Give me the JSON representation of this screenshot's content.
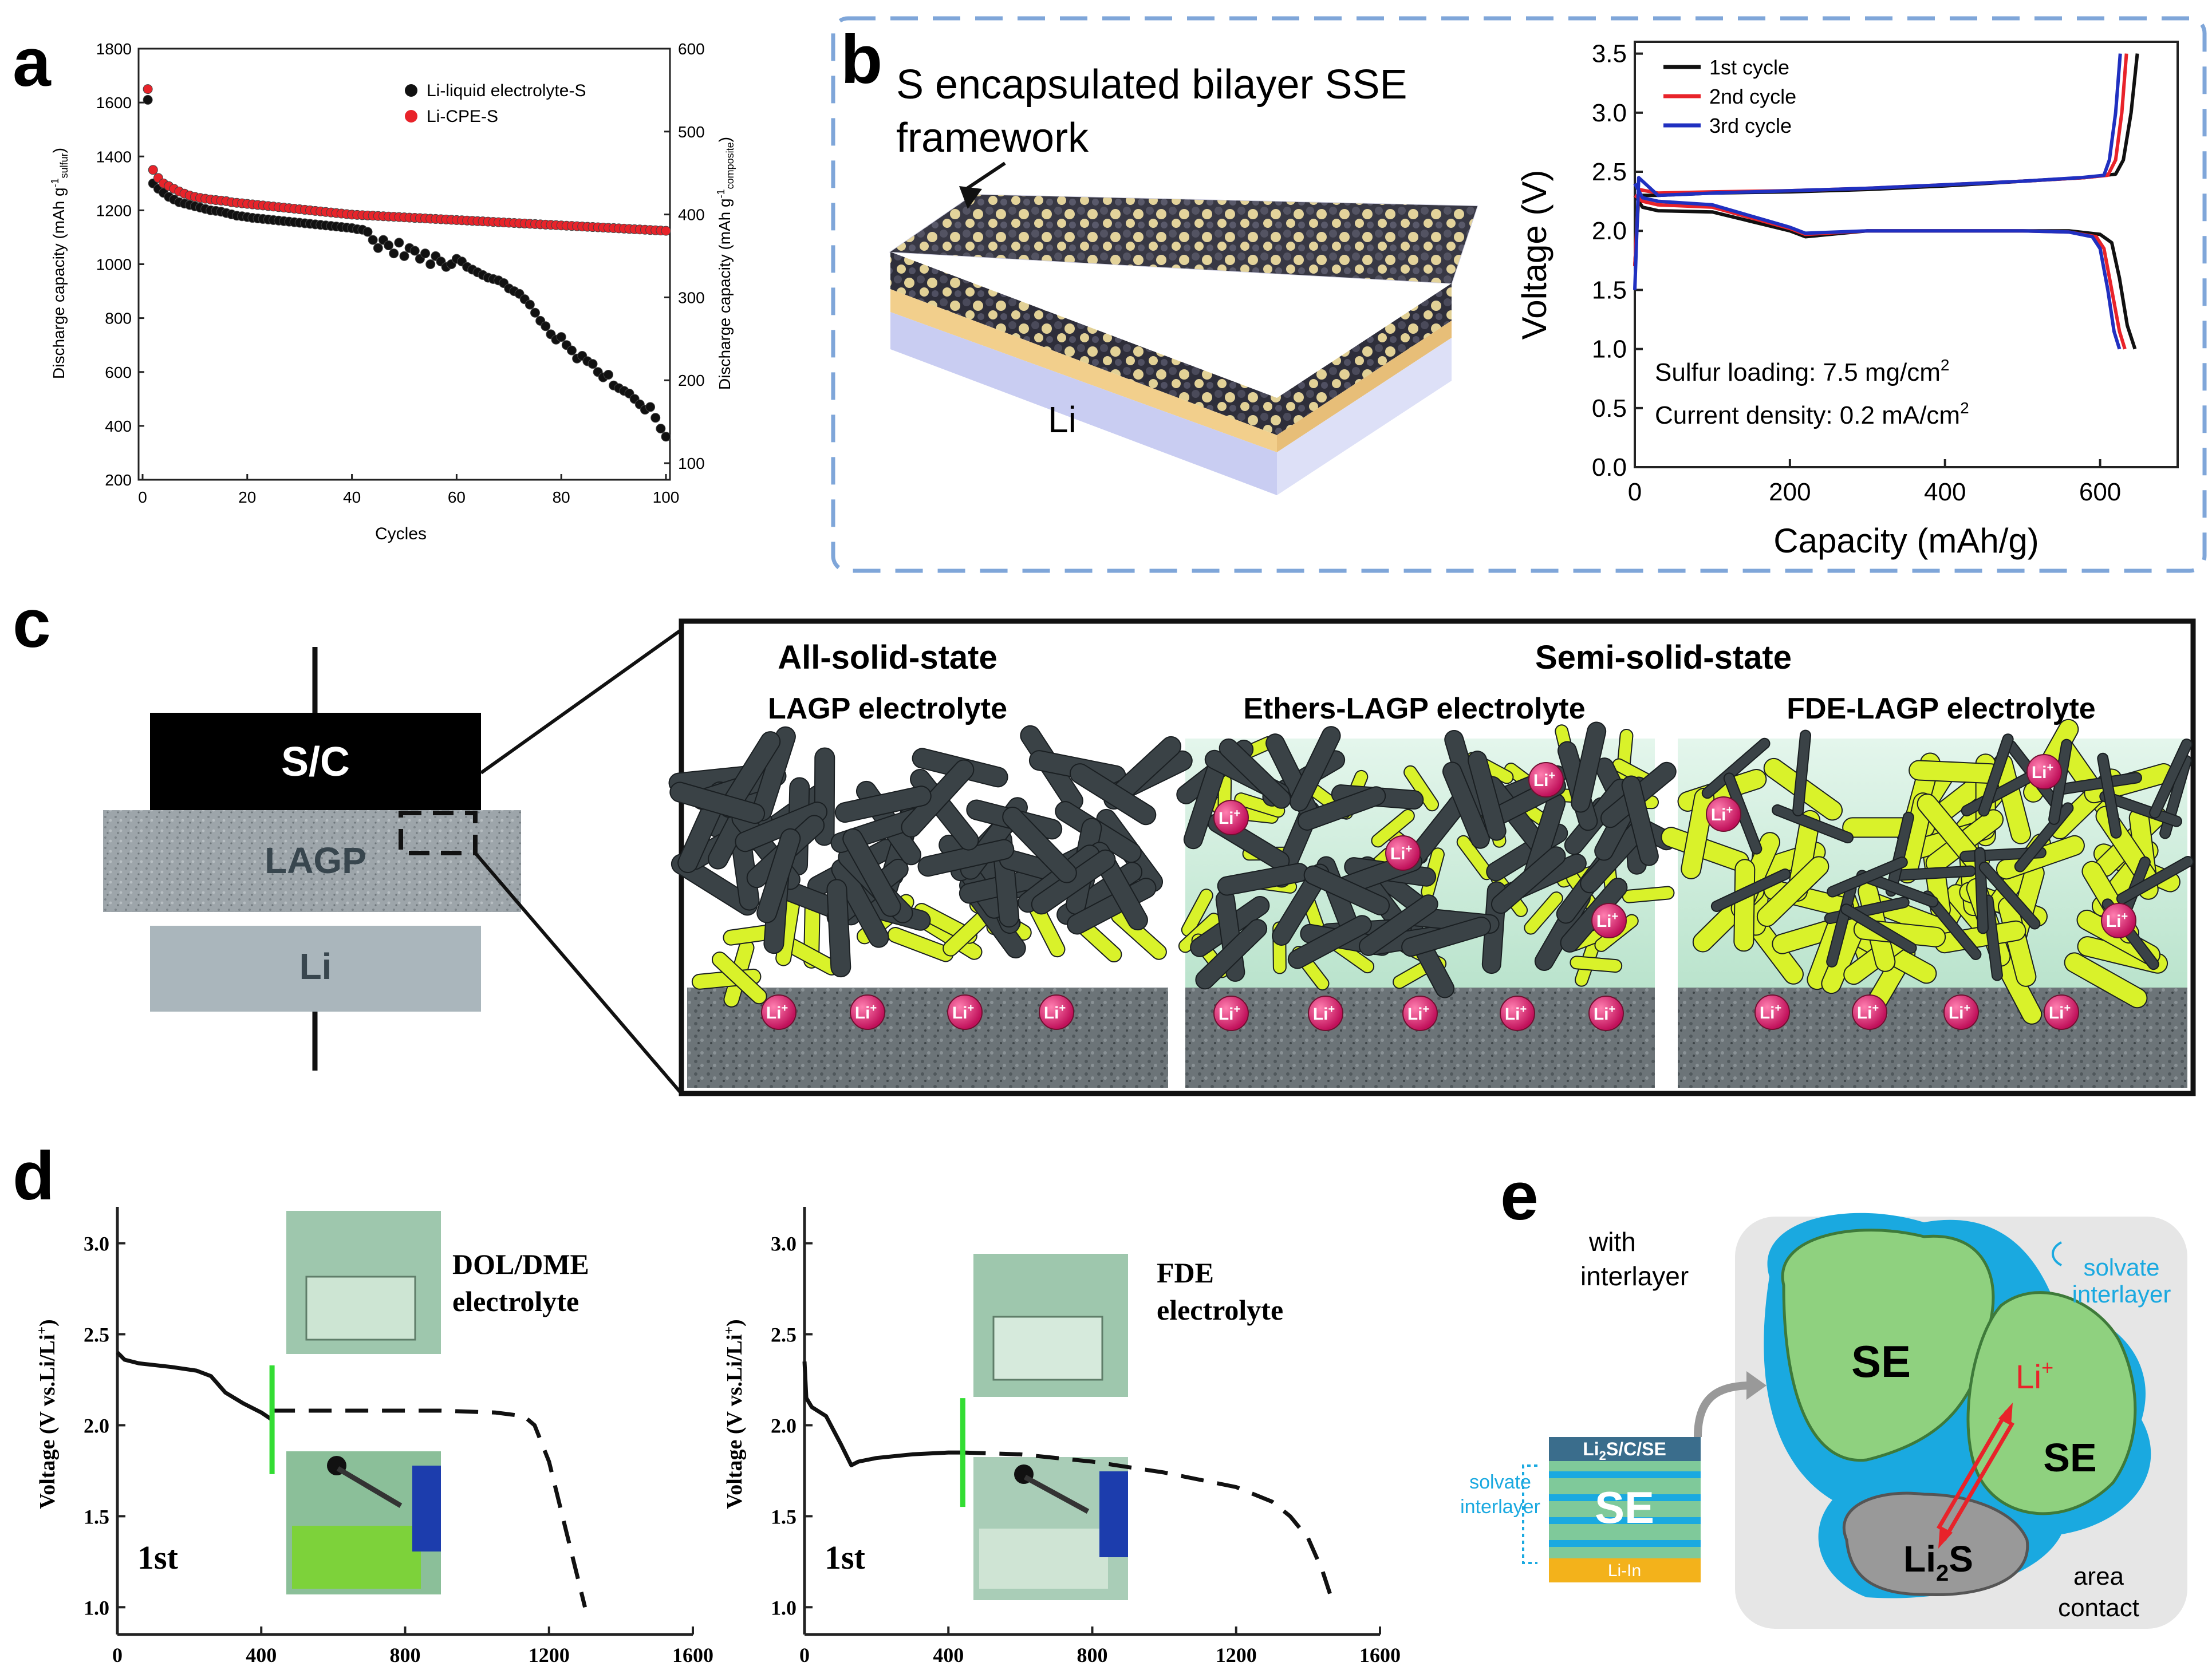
{
  "colors": {
    "black": "#111111",
    "red": "#e8232a",
    "blue": "#2030c0",
    "green": "#33dd33",
    "panel_border": "#7fa6d9",
    "cyan": "#1aa9e0",
    "se_green": "#8fd17f",
    "gray_box": "#e6e6e6",
    "lagp": "#9aa2a8",
    "li_box": "#aab6bc"
  },
  "panel_labels": {
    "a": "a",
    "b": "b",
    "c": "c",
    "d": "d",
    "e": "e"
  },
  "chart_data": [
    {
      "id": "a",
      "type": "scatter",
      "title": "",
      "xlabel": "Cycles",
      "ylabel_left": "Discharge capacity (mAh g-1 sulfur)",
      "ylabel_left_main": "Discharge capacity (mAh g",
      "ylabel_left_sup": "-1",
      "ylabel_left_sub": "sulfur",
      "ylabel_right": "Discharge capacity (mAh g-1 composite)",
      "ylabel_right_main": "Discharge capacity (mAh g",
      "ylabel_right_sup": "-1",
      "ylabel_right_sub": "composite",
      "xlim": [
        0,
        100
      ],
      "ylim_left": [
        200,
        1800
      ],
      "ylim_right": [
        80,
        600
      ],
      "xticks": [
        0,
        20,
        40,
        60,
        80,
        100
      ],
      "yticks_left": [
        200,
        400,
        600,
        800,
        1000,
        1200,
        1400,
        1600,
        1800
      ],
      "yticks_right": [
        100,
        200,
        300,
        400,
        500,
        600
      ],
      "legend": [
        "Li-liquid electrolyte-S",
        "Li-CPE-S"
      ],
      "series": [
        {
          "name": "Li-liquid electrolyte-S",
          "color": "#111111",
          "x": [
            1,
            2,
            3,
            4,
            5,
            6,
            7,
            8,
            9,
            10,
            11,
            12,
            13,
            14,
            15,
            16,
            17,
            18,
            19,
            20,
            21,
            22,
            23,
            24,
            25,
            26,
            27,
            28,
            29,
            30,
            31,
            32,
            33,
            34,
            35,
            36,
            37,
            38,
            39,
            40,
            41,
            42,
            43,
            44,
            45,
            46,
            47,
            48,
            49,
            50,
            51,
            52,
            53,
            54,
            55,
            56,
            57,
            58,
            59,
            60,
            61,
            62,
            63,
            64,
            65,
            66,
            67,
            68,
            69,
            70,
            71,
            72,
            73,
            74,
            75,
            76,
            77,
            78,
            79,
            80,
            81,
            82,
            83,
            84,
            85,
            86,
            87,
            88,
            89,
            90,
            91,
            92,
            93,
            94,
            95,
            96,
            97,
            98,
            99,
            100
          ],
          "y": [
            1610,
            1300,
            1280,
            1265,
            1250,
            1240,
            1230,
            1225,
            1220,
            1215,
            1210,
            1205,
            1200,
            1198,
            1195,
            1190,
            1185,
            1180,
            1178,
            1175,
            1172,
            1170,
            1168,
            1166,
            1164,
            1162,
            1160,
            1158,
            1156,
            1154,
            1152,
            1150,
            1148,
            1146,
            1144,
            1142,
            1140,
            1138,
            1136,
            1134,
            1130,
            1128,
            1120,
            1090,
            1060,
            1090,
            1070,
            1040,
            1080,
            1030,
            1060,
            1050,
            1020,
            1040,
            1000,
            1030,
            1010,
            990,
            1000,
            1020,
            1010,
            990,
            980,
            970,
            960,
            950,
            945,
            940,
            930,
            910,
            900,
            890,
            870,
            850,
            820,
            790,
            770,
            740,
            720,
            730,
            700,
            680,
            650,
            660,
            640,
            630,
            600,
            580,
            590,
            550,
            540,
            530,
            520,
            500,
            480,
            460,
            470,
            430,
            390,
            360
          ]
        },
        {
          "name": "Li-CPE-S",
          "color": "#e8232a",
          "x": [
            1,
            2,
            3,
            4,
            5,
            6,
            7,
            8,
            9,
            10,
            11,
            12,
            13,
            14,
            15,
            16,
            17,
            18,
            19,
            20,
            21,
            22,
            23,
            24,
            25,
            26,
            27,
            28,
            29,
            30,
            31,
            32,
            33,
            34,
            35,
            36,
            37,
            38,
            39,
            40,
            41,
            42,
            43,
            44,
            45,
            46,
            47,
            48,
            49,
            50,
            51,
            52,
            53,
            54,
            55,
            56,
            57,
            58,
            59,
            60,
            61,
            62,
            63,
            64,
            65,
            66,
            67,
            68,
            69,
            70,
            71,
            72,
            73,
            74,
            75,
            76,
            77,
            78,
            79,
            80,
            81,
            82,
            83,
            84,
            85,
            86,
            87,
            88,
            89,
            90,
            91,
            92,
            93,
            94,
            95,
            96,
            97,
            98,
            99,
            100
          ],
          "y": [
            1650,
            1350,
            1320,
            1300,
            1290,
            1280,
            1270,
            1262,
            1255,
            1250,
            1246,
            1243,
            1240,
            1238,
            1236,
            1234,
            1230,
            1228,
            1226,
            1224,
            1222,
            1220,
            1218,
            1216,
            1214,
            1212,
            1210,
            1208,
            1206,
            1204,
            1202,
            1200,
            1198,
            1196,
            1194,
            1192,
            1190,
            1188,
            1186,
            1184,
            1183,
            1182,
            1181,
            1180,
            1179,
            1178,
            1177,
            1176,
            1175,
            1174,
            1173,
            1172,
            1171,
            1170,
            1169,
            1168,
            1167,
            1166,
            1165,
            1164,
            1163,
            1162,
            1161,
            1160,
            1159,
            1158,
            1157,
            1156,
            1155,
            1154,
            1153,
            1152,
            1151,
            1150,
            1149,
            1148,
            1147,
            1146,
            1145,
            1144,
            1143,
            1142,
            1141,
            1140,
            1139,
            1138,
            1137,
            1136,
            1135,
            1134,
            1133,
            1132,
            1131,
            1130,
            1129,
            1128,
            1127,
            1126,
            1125,
            1124
          ]
        }
      ]
    },
    {
      "id": "b",
      "type": "line",
      "xlabel": "Capacity (mAh/g)",
      "ylabel": "Voltage (V)",
      "xlim": [
        0,
        700
      ],
      "ylim": [
        0,
        3.6
      ],
      "xticks": [
        0,
        200,
        400,
        600
      ],
      "yticks": [
        0.0,
        0.5,
        1.0,
        1.5,
        2.0,
        2.5,
        3.0,
        3.5
      ],
      "ytick_labels": [
        "0.0",
        "0.5",
        "1.0",
        "1.5",
        "2.0",
        "2.5",
        "3.0",
        "3.5"
      ],
      "annotation_loading": "Sulfur loading: 7.5 mg/cm",
      "annotation_loading_sup": "2",
      "annotation_current": "Current density: 0.2 mA/cm",
      "annotation_current_sup": "2",
      "legend": [
        "1st cycle",
        "2nd cycle",
        "3rd cycle"
      ],
      "series": [
        {
          "name": "1st cycle (discharge)",
          "color": "#111111",
          "x": [
            0,
            10,
            30,
            100,
            200,
            220,
            300,
            400,
            500,
            560,
            600,
            615,
            625,
            635,
            645
          ],
          "y": [
            2.3,
            2.2,
            2.17,
            2.16,
            2.0,
            1.95,
            2.0,
            2.0,
            2.0,
            2.0,
            1.97,
            1.9,
            1.6,
            1.2,
            1.0
          ]
        },
        {
          "name": "1st cycle (charge)",
          "color": "#111111",
          "x": [
            0,
            5,
            30,
            100,
            200,
            300,
            400,
            500,
            580,
            620,
            630,
            640,
            648
          ],
          "y": [
            1.7,
            2.3,
            2.3,
            2.32,
            2.33,
            2.35,
            2.38,
            2.42,
            2.45,
            2.48,
            2.6,
            3.0,
            3.5
          ]
        },
        {
          "name": "2nd cycle (discharge)",
          "color": "#e8232a",
          "x": [
            0,
            10,
            30,
            100,
            200,
            220,
            300,
            400,
            500,
            560,
            595,
            605,
            615,
            625,
            632
          ],
          "y": [
            2.3,
            2.25,
            2.22,
            2.2,
            2.02,
            1.97,
            2.0,
            2.0,
            2.0,
            1.99,
            1.95,
            1.85,
            1.5,
            1.15,
            1.0
          ]
        },
        {
          "name": "2nd cycle (charge)",
          "color": "#e8232a",
          "x": [
            0,
            5,
            30,
            100,
            200,
            300,
            400,
            500,
            580,
            610,
            620,
            628,
            634
          ],
          "y": [
            1.7,
            2.35,
            2.32,
            2.33,
            2.34,
            2.36,
            2.39,
            2.42,
            2.45,
            2.47,
            2.6,
            3.0,
            3.5
          ]
        },
        {
          "name": "3rd cycle (discharge)",
          "color": "#2030c0",
          "x": [
            0,
            10,
            30,
            100,
            200,
            220,
            300,
            400,
            500,
            560,
            590,
            600,
            610,
            618,
            625
          ],
          "y": [
            2.4,
            2.28,
            2.25,
            2.22,
            2.03,
            1.98,
            2.0,
            2.0,
            2.0,
            1.99,
            1.95,
            1.85,
            1.5,
            1.15,
            1.0
          ]
        },
        {
          "name": "3rd cycle (charge)",
          "color": "#2030c0",
          "x": [
            0,
            5,
            30,
            100,
            200,
            300,
            400,
            500,
            575,
            605,
            612,
            620,
            626
          ],
          "y": [
            1.5,
            2.45,
            2.3,
            2.32,
            2.34,
            2.36,
            2.39,
            2.42,
            2.45,
            2.47,
            2.6,
            3.0,
            3.5
          ]
        }
      ]
    },
    {
      "id": "d-left",
      "type": "line",
      "ylabel": "Voltage (V vs.Li/Li+)",
      "ylabel_main": "Voltage (V vs.Li/Li",
      "ylabel_sup": "+",
      "ylabel_end": ")",
      "xlim": [
        0,
        1600
      ],
      "ylim": [
        0.85,
        3.2
      ],
      "xticks": [
        0,
        400,
        800,
        1200,
        1600
      ],
      "yticks": [
        1.0,
        1.5,
        2.0,
        2.5,
        3.0
      ],
      "ytick_labels": [
        "1.0",
        "1.5",
        "2.0",
        "2.5",
        "3.0"
      ],
      "cycle_label": "1st",
      "inset_label_1": "DOL/DME",
      "inset_label_2": "electrolyte",
      "marker_x": 430,
      "series": [
        {
          "name": "solid",
          "style": "solid",
          "x": [
            0,
            20,
            60,
            150,
            220,
            260,
            300,
            350,
            400,
            430
          ],
          "y": [
            2.4,
            2.36,
            2.34,
            2.32,
            2.3,
            2.27,
            2.18,
            2.12,
            2.07,
            2.03
          ]
        },
        {
          "name": "dashed",
          "style": "dashed",
          "x": [
            430,
            500,
            700,
            900,
            1050,
            1130,
            1160,
            1200,
            1250,
            1300
          ],
          "y": [
            2.08,
            2.08,
            2.08,
            2.08,
            2.07,
            2.05,
            2.0,
            1.8,
            1.4,
            1.0
          ]
        }
      ]
    },
    {
      "id": "d-right",
      "type": "line",
      "ylabel": "Voltage (V vs.Li/Li+)",
      "ylabel_main": "Voltage (V vs.Li/Li",
      "ylabel_sup": "+",
      "ylabel_end": ")",
      "xlim": [
        0,
        1600
      ],
      "ylim": [
        0.85,
        3.2
      ],
      "xticks": [
        0,
        400,
        800,
        1200,
        1600
      ],
      "yticks": [
        1.0,
        1.5,
        2.0,
        2.5,
        3.0
      ],
      "ytick_labels": [
        "1.0",
        "1.5",
        "2.0",
        "2.5",
        "3.0"
      ],
      "cycle_label": "1st",
      "inset_label_1": "FDE",
      "inset_label_2": "electrolyte",
      "marker_x": 440,
      "series": [
        {
          "name": "solid",
          "style": "solid",
          "x": [
            0,
            5,
            20,
            60,
            100,
            130,
            150,
            200,
            300,
            400,
            440
          ],
          "y": [
            2.35,
            2.15,
            2.1,
            2.05,
            1.9,
            1.78,
            1.8,
            1.82,
            1.84,
            1.85,
            1.85
          ]
        },
        {
          "name": "dashed",
          "style": "dashed",
          "x": [
            440,
            600,
            800,
            1000,
            1200,
            1300,
            1350,
            1400,
            1440,
            1470
          ],
          "y": [
            1.85,
            1.84,
            1.8,
            1.74,
            1.66,
            1.58,
            1.5,
            1.38,
            1.2,
            1.02
          ]
        }
      ]
    }
  ],
  "panel_b_diagram": {
    "title_line1": "S encapsulated bilayer SSE",
    "title_line2": "framework",
    "li_label": "Li"
  },
  "panel_c": {
    "sc_label": "S/C",
    "lagp_label": "LAGP",
    "li_label": "Li",
    "header_all_solid": "All-solid-state",
    "header_semi_solid": "Semi-solid-state",
    "sub_lagp": "LAGP electrolyte",
    "sub_ethers": "Ethers-LAGP electrolyte",
    "sub_fde": "FDE-LAGP electrolyte",
    "li_ion": "Li",
    "li_ion_sup": "+"
  },
  "panel_e": {
    "with_interlayer_1": "with",
    "with_interlayer_2": "interlayer",
    "stack_top": "Li",
    "stack_top_sub": "2",
    "stack_top_rest": "S/C/SE",
    "stack_se": "SE",
    "stack_bottom": "Li-In",
    "solvate_left_1": "solvate",
    "solvate_left_2": "interlayer",
    "solvate_right_1": "solvate",
    "solvate_right_2": "interlayer",
    "se_big": "SE",
    "se_small": "SE",
    "li_ion": "Li",
    "li_ion_sup": "+",
    "li2s": "Li",
    "li2s_sub": "2",
    "li2s_rest": "S",
    "area_1": "area",
    "area_2": "contact"
  }
}
